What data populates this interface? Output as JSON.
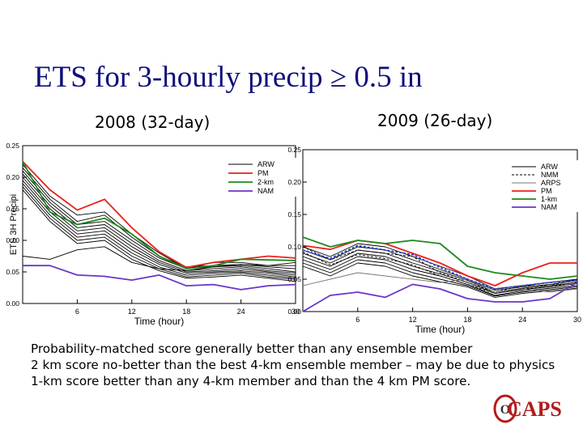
{
  "slide": {
    "title": "ETS for 3-hourly precip ≥ 0.5 in",
    "subtitle_left": "2008 (32-day)",
    "subtitle_right": "2009 (26-day)",
    "notes": [
      "Probability-matched score generally better than any ensemble member",
      "2 km score no-better than the best 4-km ensemble member – may be due to physics",
      "1-km score better than any 4-km member and than the 4 km PM score."
    ],
    "logo_text": "CAPS"
  },
  "chart_data": [
    {
      "type": "line",
      "title": "2008 (32-day)",
      "xlabel": "Time (hour)",
      "ylabel": "ETS 3H Precipi",
      "xlim": [
        0,
        30
      ],
      "ylim": [
        0,
        0.25
      ],
      "xticks": [
        "6",
        "12",
        "18",
        "24",
        "30"
      ],
      "yticks": [
        "0.00",
        "0.05",
        "0.10",
        "0.15",
        "0.20",
        "0.25"
      ],
      "x": [
        0,
        3,
        6,
        9,
        12,
        15,
        18,
        21,
        24,
        27,
        30
      ],
      "legend": [
        "ARW",
        "PM",
        "2-km",
        "NAM"
      ],
      "series": [
        {
          "name": "PM",
          "color": "#e8221c",
          "values": [
            0.225,
            0.18,
            0.148,
            0.165,
            0.12,
            0.082,
            0.057,
            0.065,
            0.07,
            0.075,
            0.072
          ]
        },
        {
          "name": "2-km",
          "color": "#1e8a1e",
          "values": [
            0.225,
            0.145,
            0.125,
            0.135,
            0.11,
            0.075,
            0.055,
            0.06,
            0.07,
            0.069,
            0.068
          ]
        },
        {
          "name": "NAM",
          "color": "#6a35c9",
          "values": [
            0.06,
            0.06,
            0.045,
            0.043,
            0.037,
            0.045,
            0.028,
            0.03,
            0.022,
            0.028,
            0.03
          ]
        },
        {
          "name": "ARW",
          "color": "#000000",
          "values": [
            0.22,
            0.17,
            0.14,
            0.145,
            0.11,
            0.08,
            0.055,
            0.065,
            0.065,
            0.06,
            0.06
          ]
        },
        {
          "name": "ARW",
          "color": "#000000",
          "values": [
            0.215,
            0.165,
            0.13,
            0.14,
            0.105,
            0.075,
            0.058,
            0.06,
            0.062,
            0.058,
            0.055
          ]
        },
        {
          "name": "ARW",
          "color": "#000000",
          "values": [
            0.21,
            0.16,
            0.125,
            0.13,
            0.1,
            0.072,
            0.055,
            0.058,
            0.06,
            0.055,
            0.05
          ]
        },
        {
          "name": "ARW",
          "color": "#000000",
          "values": [
            0.205,
            0.155,
            0.12,
            0.125,
            0.095,
            0.068,
            0.052,
            0.055,
            0.058,
            0.052,
            0.048
          ]
        },
        {
          "name": "ARW",
          "color": "#000000",
          "values": [
            0.2,
            0.15,
            0.115,
            0.12,
            0.09,
            0.065,
            0.05,
            0.052,
            0.055,
            0.05,
            0.045
          ]
        },
        {
          "name": "ARW",
          "color": "#000000",
          "values": [
            0.195,
            0.145,
            0.11,
            0.115,
            0.085,
            0.062,
            0.048,
            0.05,
            0.052,
            0.048,
            0.042
          ]
        },
        {
          "name": "ARW",
          "color": "#000000",
          "values": [
            0.19,
            0.14,
            0.105,
            0.11,
            0.08,
            0.058,
            0.045,
            0.048,
            0.05,
            0.045,
            0.04
          ]
        },
        {
          "name": "ARW",
          "color": "#000000",
          "values": [
            0.185,
            0.135,
            0.1,
            0.105,
            0.075,
            0.055,
            0.042,
            0.045,
            0.048,
            0.042,
            0.038
          ]
        },
        {
          "name": "ARW",
          "color": "#000000",
          "values": [
            0.18,
            0.13,
            0.095,
            0.1,
            0.07,
            0.052,
            0.04,
            0.042,
            0.045,
            0.04,
            0.035
          ]
        },
        {
          "name": "ARW",
          "color": "#000000",
          "values": [
            0.075,
            0.07,
            0.085,
            0.09,
            0.065,
            0.055,
            0.052,
            0.058,
            0.062,
            0.06,
            0.065
          ]
        }
      ]
    },
    {
      "type": "line",
      "title": "2009 (26-day)",
      "xlabel": "Time (hour)",
      "ylabel": "",
      "xlim": [
        0,
        30
      ],
      "ylim": [
        0,
        0.25
      ],
      "xticks": [
        "6",
        "12",
        "18",
        "24",
        "30"
      ],
      "yticks": [
        "0.00",
        "0.05",
        "0.10",
        "0.15",
        "0.20",
        "0.25"
      ],
      "x": [
        0,
        3,
        6,
        9,
        12,
        15,
        18,
        21,
        24,
        27,
        30
      ],
      "legend": [
        "ARW",
        "NMM",
        "ARPS",
        "PM",
        "1-km",
        "NAM"
      ],
      "series": [
        {
          "name": "PM",
          "color": "#e8221c",
          "values": [
            0.102,
            0.096,
            0.11,
            0.105,
            0.09,
            0.075,
            0.055,
            0.04,
            0.06,
            0.075,
            0.075
          ]
        },
        {
          "name": "1-km",
          "color": "#1e8a1e",
          "values": [
            0.115,
            0.1,
            0.11,
            0.105,
            0.11,
            0.105,
            0.07,
            0.06,
            0.055,
            0.05,
            0.055
          ]
        },
        {
          "name": "NAM",
          "color": "#6a35c9",
          "values": [
            0.0,
            0.025,
            0.03,
            0.022,
            0.042,
            0.035,
            0.02,
            0.015,
            0.015,
            0.02,
            0.045
          ]
        },
        {
          "name": "ARW",
          "color": "#000000",
          "values": [
            0.1,
            0.085,
            0.105,
            0.1,
            0.085,
            0.07,
            0.055,
            0.035,
            0.04,
            0.045,
            0.05
          ]
        },
        {
          "name": "ARW",
          "color": "#000000",
          "values": [
            0.095,
            0.08,
            0.1,
            0.095,
            0.08,
            0.065,
            0.05,
            0.033,
            0.038,
            0.042,
            0.048
          ]
        },
        {
          "name": "ARW",
          "color": "#000000",
          "values": [
            0.09,
            0.075,
            0.095,
            0.09,
            0.075,
            0.062,
            0.048,
            0.03,
            0.036,
            0.04,
            0.045
          ]
        },
        {
          "name": "ARW",
          "color": "#000000",
          "values": [
            0.085,
            0.07,
            0.09,
            0.085,
            0.07,
            0.058,
            0.045,
            0.028,
            0.034,
            0.038,
            0.043
          ]
        },
        {
          "name": "ARW",
          "color": "#000000",
          "values": [
            0.08,
            0.065,
            0.085,
            0.08,
            0.065,
            0.055,
            0.042,
            0.025,
            0.032,
            0.036,
            0.04
          ]
        },
        {
          "name": "ARW",
          "color": "#000000",
          "values": [
            0.075,
            0.06,
            0.08,
            0.075,
            0.06,
            0.05,
            0.04,
            0.024,
            0.03,
            0.034,
            0.038
          ]
        },
        {
          "name": "ARW",
          "color": "#000000",
          "values": [
            0.07,
            0.055,
            0.075,
            0.07,
            0.055,
            0.046,
            0.038,
            0.022,
            0.028,
            0.032,
            0.036
          ]
        },
        {
          "name": "NMM",
          "color": "#000000",
          "dashed": true,
          "values": [
            0.1,
            0.08,
            0.095,
            0.09,
            0.085,
            0.06,
            0.045,
            0.03,
            0.04,
            0.04,
            0.05
          ]
        },
        {
          "name": "NMM",
          "color": "#000000",
          "dashed": true,
          "values": [
            0.092,
            0.072,
            0.088,
            0.082,
            0.072,
            0.055,
            0.042,
            0.028,
            0.035,
            0.038,
            0.046
          ]
        },
        {
          "name": "ARPS",
          "color": "#777777",
          "values": [
            0.04,
            0.05,
            0.06,
            0.055,
            0.05,
            0.045,
            0.05,
            0.03,
            0.035,
            0.03,
            0.035
          ]
        },
        {
          "name": "ARPS",
          "color": "#2a3fd1",
          "dashed": true,
          "values": [
            0.095,
            0.082,
            0.102,
            0.095,
            0.088,
            0.068,
            0.05,
            0.035,
            0.04,
            0.045,
            0.048
          ]
        }
      ]
    }
  ]
}
